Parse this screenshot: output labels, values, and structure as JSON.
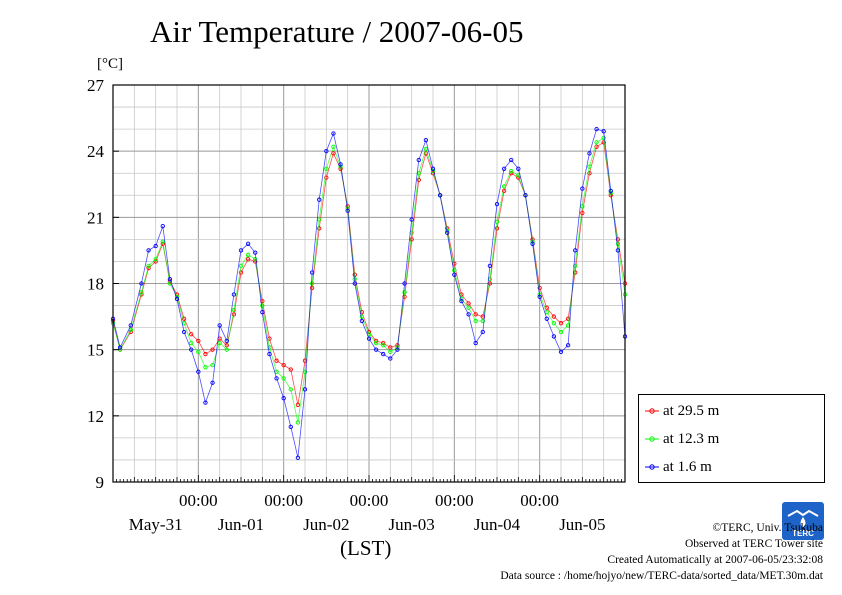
{
  "header": {
    "title": "Air Temperature / 2007-06-05",
    "unit": "[°C]",
    "xaxis_label": "(LST)"
  },
  "legend": [
    {
      "label": "at 29.5 m",
      "color": "#ff0000"
    },
    {
      "label": "at 12.3 m",
      "color": "#00ff00"
    },
    {
      "label": "at 1.6 m",
      "color": "#0000ff"
    }
  ],
  "credits": {
    "copyright": "©TERC, Univ. Tsukuba",
    "observed": "Observed at TERC Tower site",
    "created": "Created Automatically at 2007-06-05/23:32:08",
    "source": "Data source : /home/hojyo/new/TERC-data/sorted_data/MET.30m.dat"
  },
  "logo": {
    "text": "TERC",
    "color": "#1e64c8"
  },
  "chart_data": {
    "type": "line",
    "title": "Air Temperature / 2007-06-05",
    "ylabel": "[°C]",
    "xlabel": "(LST)",
    "ylim": [
      9,
      27
    ],
    "yticks": [
      9,
      12,
      15,
      18,
      21,
      24,
      27
    ],
    "xlim": [
      -24,
      120
    ],
    "time_ticks": [
      "00:00",
      "00:00",
      "00:00",
      "00:00",
      "00:00"
    ],
    "date_labels": [
      "May-31",
      "Jun-01",
      "Jun-02",
      "Jun-03",
      "Jun-04",
      "Jun-05"
    ],
    "grid": true,
    "legend_position": "right",
    "x_unit": "hours from 2007-06-01 00:00",
    "series": [
      {
        "name": "at 29.5 m",
        "color": "#ff0000",
        "points": [
          [
            -24,
            16.3
          ],
          [
            -22,
            15.0
          ],
          [
            -19,
            15.8
          ],
          [
            -16,
            17.5
          ],
          [
            -14,
            18.7
          ],
          [
            -12,
            19.0
          ],
          [
            -10,
            19.8
          ],
          [
            -8,
            18.1
          ],
          [
            -6,
            17.5
          ],
          [
            -4,
            16.4
          ],
          [
            -2,
            15.7
          ],
          [
            0,
            15.4
          ],
          [
            2,
            14.8
          ],
          [
            4,
            15.0
          ],
          [
            6,
            15.5
          ],
          [
            8,
            15.2
          ],
          [
            10,
            16.6
          ],
          [
            12,
            18.5
          ],
          [
            14,
            19.1
          ],
          [
            16,
            19.0
          ],
          [
            18,
            17.2
          ],
          [
            20,
            15.5
          ],
          [
            22,
            14.5
          ],
          [
            24,
            14.3
          ],
          [
            26,
            14.1
          ],
          [
            28,
            12.5
          ],
          [
            30,
            14.5
          ],
          [
            32,
            17.8
          ],
          [
            34,
            20.5
          ],
          [
            36,
            22.8
          ],
          [
            38,
            23.9
          ],
          [
            40,
            23.2
          ],
          [
            42,
            21.5
          ],
          [
            44,
            18.4
          ],
          [
            46,
            16.7
          ],
          [
            48,
            15.8
          ],
          [
            50,
            15.4
          ],
          [
            52,
            15.3
          ],
          [
            54,
            15.1
          ],
          [
            56,
            15.2
          ],
          [
            58,
            17.4
          ],
          [
            60,
            20.0
          ],
          [
            62,
            22.7
          ],
          [
            64,
            23.9
          ],
          [
            66,
            23.0
          ],
          [
            68,
            22.0
          ],
          [
            70,
            20.5
          ],
          [
            72,
            18.9
          ],
          [
            74,
            17.5
          ],
          [
            76,
            17.1
          ],
          [
            78,
            16.6
          ],
          [
            80,
            16.5
          ],
          [
            82,
            18.0
          ],
          [
            84,
            20.5
          ],
          [
            86,
            22.2
          ],
          [
            88,
            23.0
          ],
          [
            90,
            22.8
          ],
          [
            92,
            22.0
          ],
          [
            94,
            20.0
          ],
          [
            96,
            17.8
          ],
          [
            98,
            16.9
          ],
          [
            100,
            16.5
          ],
          [
            102,
            16.2
          ],
          [
            104,
            16.4
          ],
          [
            106,
            18.5
          ],
          [
            108,
            21.2
          ],
          [
            110,
            23.0
          ],
          [
            112,
            24.2
          ],
          [
            114,
            24.4
          ],
          [
            116,
            22.0
          ],
          [
            118,
            20.0
          ],
          [
            120,
            18.0
          ]
        ]
      },
      {
        "name": "at 12.3 m",
        "color": "#00ff00",
        "points": [
          [
            -24,
            16.2
          ],
          [
            -22,
            15.0
          ],
          [
            -19,
            15.9
          ],
          [
            -16,
            17.6
          ],
          [
            -14,
            18.8
          ],
          [
            -12,
            19.1
          ],
          [
            -10,
            19.9
          ],
          [
            -8,
            18.0
          ],
          [
            -6,
            17.4
          ],
          [
            -4,
            16.2
          ],
          [
            -2,
            15.3
          ],
          [
            0,
            14.9
          ],
          [
            2,
            14.2
          ],
          [
            4,
            14.3
          ],
          [
            6,
            15.3
          ],
          [
            8,
            15.0
          ],
          [
            10,
            16.8
          ],
          [
            12,
            18.8
          ],
          [
            14,
            19.3
          ],
          [
            16,
            19.1
          ],
          [
            18,
            17.0
          ],
          [
            20,
            15.1
          ],
          [
            22,
            14.0
          ],
          [
            24,
            13.7
          ],
          [
            26,
            13.2
          ],
          [
            28,
            11.7
          ],
          [
            30,
            14.0
          ],
          [
            32,
            18.0
          ],
          [
            34,
            20.9
          ],
          [
            36,
            23.2
          ],
          [
            38,
            24.2
          ],
          [
            40,
            23.3
          ],
          [
            42,
            21.4
          ],
          [
            44,
            18.2
          ],
          [
            46,
            16.5
          ],
          [
            48,
            15.7
          ],
          [
            50,
            15.3
          ],
          [
            52,
            15.2
          ],
          [
            54,
            14.9
          ],
          [
            56,
            15.1
          ],
          [
            58,
            17.6
          ],
          [
            60,
            20.3
          ],
          [
            62,
            23.0
          ],
          [
            64,
            24.1
          ],
          [
            66,
            23.1
          ],
          [
            68,
            22.0
          ],
          [
            70,
            20.4
          ],
          [
            72,
            18.6
          ],
          [
            74,
            17.3
          ],
          [
            76,
            16.9
          ],
          [
            78,
            16.3
          ],
          [
            80,
            16.3
          ],
          [
            82,
            18.2
          ],
          [
            84,
            20.8
          ],
          [
            86,
            22.4
          ],
          [
            88,
            23.1
          ],
          [
            90,
            22.9
          ],
          [
            92,
            22.0
          ],
          [
            94,
            19.9
          ],
          [
            96,
            17.5
          ],
          [
            98,
            16.7
          ],
          [
            100,
            16.2
          ],
          [
            102,
            15.8
          ],
          [
            104,
            16.1
          ],
          [
            106,
            18.8
          ],
          [
            108,
            21.5
          ],
          [
            110,
            23.3
          ],
          [
            112,
            24.4
          ],
          [
            114,
            24.6
          ],
          [
            116,
            22.1
          ],
          [
            118,
            19.8
          ],
          [
            120,
            17.5
          ]
        ]
      },
      {
        "name": "at 1.6 m",
        "color": "#0000ff",
        "points": [
          [
            -24,
            16.4
          ],
          [
            -22,
            15.1
          ],
          [
            -19,
            16.1
          ],
          [
            -16,
            18.0
          ],
          [
            -14,
            19.5
          ],
          [
            -12,
            19.7
          ],
          [
            -10,
            20.6
          ],
          [
            -8,
            18.2
          ],
          [
            -6,
            17.3
          ],
          [
            -4,
            15.8
          ],
          [
            -2,
            15.0
          ],
          [
            0,
            14.0
          ],
          [
            2,
            12.6
          ],
          [
            4,
            13.5
          ],
          [
            6,
            16.1
          ],
          [
            8,
            15.4
          ],
          [
            10,
            17.5
          ],
          [
            12,
            19.5
          ],
          [
            14,
            19.8
          ],
          [
            16,
            19.4
          ],
          [
            18,
            16.7
          ],
          [
            20,
            14.8
          ],
          [
            22,
            13.7
          ],
          [
            24,
            12.8
          ],
          [
            26,
            11.5
          ],
          [
            28,
            10.1
          ],
          [
            30,
            13.2
          ],
          [
            32,
            18.5
          ],
          [
            34,
            21.8
          ],
          [
            36,
            24.0
          ],
          [
            38,
            24.8
          ],
          [
            40,
            23.4
          ],
          [
            42,
            21.3
          ],
          [
            44,
            18.0
          ],
          [
            46,
            16.3
          ],
          [
            48,
            15.5
          ],
          [
            50,
            15.0
          ],
          [
            52,
            14.8
          ],
          [
            54,
            14.6
          ],
          [
            56,
            15.0
          ],
          [
            58,
            18.0
          ],
          [
            60,
            20.9
          ],
          [
            62,
            23.6
          ],
          [
            64,
            24.5
          ],
          [
            66,
            23.2
          ],
          [
            68,
            22.0
          ],
          [
            70,
            20.3
          ],
          [
            72,
            18.4
          ],
          [
            74,
            17.2
          ],
          [
            76,
            16.6
          ],
          [
            78,
            15.3
          ],
          [
            80,
            15.8
          ],
          [
            82,
            18.8
          ],
          [
            84,
            21.6
          ],
          [
            86,
            23.2
          ],
          [
            88,
            23.6
          ],
          [
            90,
            23.2
          ],
          [
            92,
            22.0
          ],
          [
            94,
            19.8
          ],
          [
            96,
            17.4
          ],
          [
            98,
            16.4
          ],
          [
            100,
            15.6
          ],
          [
            102,
            14.9
          ],
          [
            104,
            15.2
          ],
          [
            106,
            19.5
          ],
          [
            108,
            22.3
          ],
          [
            110,
            23.9
          ],
          [
            112,
            25.0
          ],
          [
            114,
            24.9
          ],
          [
            116,
            22.2
          ],
          [
            118,
            19.5
          ],
          [
            120,
            15.6
          ]
        ]
      }
    ]
  }
}
